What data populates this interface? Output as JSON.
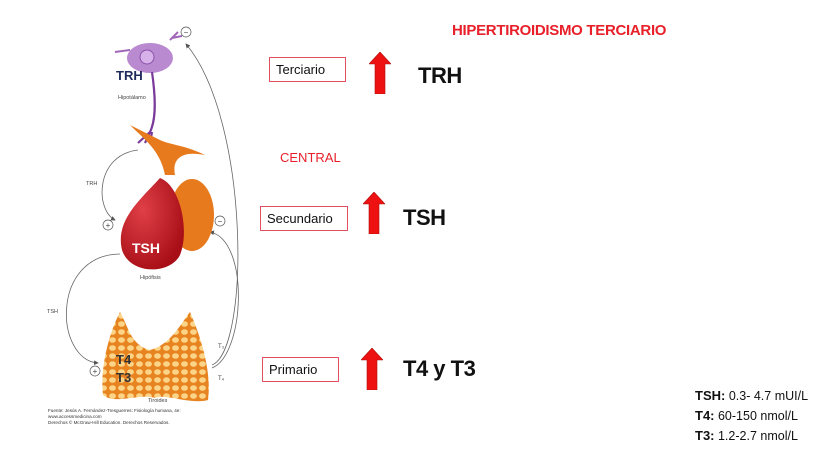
{
  "title": "HIPERTIROIDISMO TERCIARIO",
  "central_label": "CENTRAL",
  "levels": [
    {
      "label": "Terciario",
      "hormone": "TRH",
      "direction": "up"
    },
    {
      "label": "Secundario",
      "hormone": "TSH",
      "direction": "up"
    },
    {
      "label": "Primario",
      "hormone": "T4 y T3",
      "direction": "up"
    }
  ],
  "reference_values": [
    {
      "name": "TSH:",
      "value": "0.3- 4.7 mUI/L"
    },
    {
      "name": "T4:",
      "value": "60-150 nmol/L"
    },
    {
      "name": "T3:",
      "value": "1.2-2.7 nmol/L"
    }
  ],
  "figure": {
    "hypothalamus_hormone": "TRH",
    "hypothalamus_label": "Hipotálamo",
    "pituitary_hormone": "TSH",
    "pituitary_label": "Hipófisis",
    "thyroid_hormone_1": "T4",
    "thyroid_hormone_2": "T3",
    "thyroid_label": "Tiroides",
    "trh_arrow_label": "TRH",
    "tsh_arrow_label": "TSH",
    "t3_label": "T₃",
    "t4_label": "T₄",
    "plus_sign": "+",
    "minus_sign": "−",
    "source_line_1": "Fuente: Jesús A. Fernández-Tresguerres: Fisiología humana, 4e:",
    "source_line_2": "www.accessmedicina.com",
    "source_line_3": "Derechos © McGraw-Hill Education. Derechos Reservados."
  },
  "colors": {
    "accent_red": "#e8202a",
    "arrow_red": "#ee1111",
    "neuron": "#b07cc6",
    "pituitary": "#c0141c",
    "pituitary_lobe": "#e87a1e",
    "thyroid": "#f0902a"
  }
}
